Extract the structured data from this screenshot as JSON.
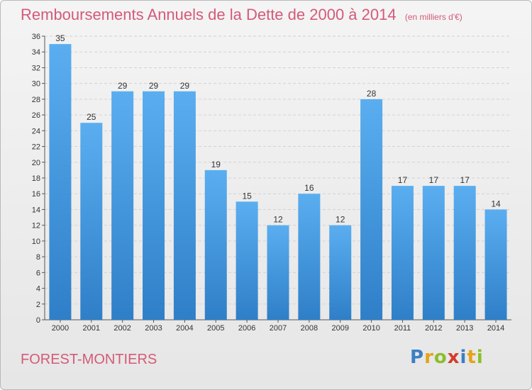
{
  "chart_data": {
    "type": "bar",
    "title": "Remboursements Annuels de la Dette de 2000 à 2014",
    "unit": "(en milliers d'€)",
    "categories": [
      "2000",
      "2001",
      "2002",
      "2003",
      "2004",
      "2005",
      "2006",
      "2007",
      "2008",
      "2009",
      "2010",
      "2011",
      "2012",
      "2013",
      "2014"
    ],
    "values": [
      35,
      25,
      29,
      29,
      29,
      19,
      15,
      12,
      16,
      12,
      28,
      17,
      17,
      17,
      14
    ],
    "ylim": [
      0,
      36
    ],
    "yticks": [
      0,
      2,
      4,
      6,
      8,
      10,
      12,
      14,
      16,
      18,
      20,
      22,
      24,
      26,
      28,
      30,
      32,
      34,
      36
    ],
    "grid": true,
    "bar_color": "#4f9fe0"
  },
  "footer": {
    "commune": "FOREST-MONTIERS",
    "brand": "Proxiti",
    "brand_colors": [
      "#3b7fc4",
      "#e5a21b",
      "#8cbf2a",
      "#d43c2c",
      "#3b7fc4",
      "#e5a21b",
      "#8cbf2a"
    ]
  }
}
